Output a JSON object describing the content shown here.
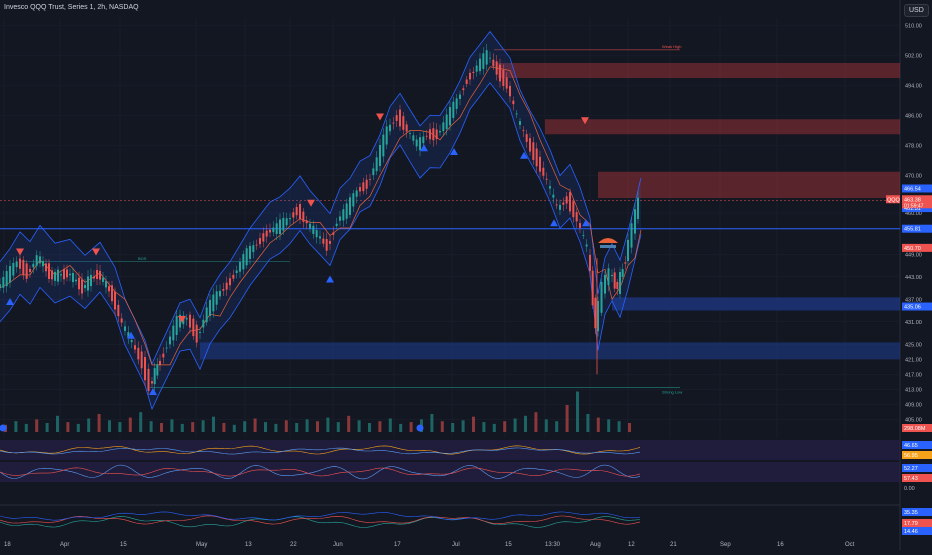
{
  "header": {
    "title": "Invesco QQQ Trust, Series 1, 2h, NASDAQ",
    "currency": "USD"
  },
  "colors": {
    "background": "#131722",
    "up": "#26a69a",
    "down": "#ef5350",
    "band": "#2962ff",
    "price_line": "#2962ff",
    "zone_red": "#b2363a",
    "zone_blue": "#1e3a8a",
    "ema": "#e8623a"
  },
  "chart_data": {
    "type": "candlestick",
    "title": "Invesco QQQ Trust, Series 1, 2h, NASDAQ",
    "currency": "USD",
    "ylim": [
      400,
      512
    ],
    "price_ticks": [
      "510.00",
      "502.00",
      "494.00",
      "486.00",
      "478.00",
      "470.00",
      "460.00",
      "449.00",
      "443.00",
      "437.00",
      "431.00",
      "425.00",
      "421.00",
      "417.00",
      "413.00",
      "409.00",
      "405.00"
    ],
    "time_ticks": [
      "18",
      "Apr",
      "15",
      "May",
      "13",
      "22",
      "Jun",
      "17",
      "Jul",
      "15",
      "13:30",
      "Aug",
      "12",
      "21",
      "Sep",
      "16",
      "Oct"
    ],
    "price_series": [
      {
        "x": 0,
        "y": 440
      },
      {
        "x": 10,
        "y": 443
      },
      {
        "x": 20,
        "y": 447
      },
      {
        "x": 30,
        "y": 444
      },
      {
        "x": 40,
        "y": 448
      },
      {
        "x": 55,
        "y": 443
      },
      {
        "x": 70,
        "y": 444
      },
      {
        "x": 85,
        "y": 440
      },
      {
        "x": 100,
        "y": 444
      },
      {
        "x": 115,
        "y": 438
      },
      {
        "x": 125,
        "y": 430
      },
      {
        "x": 135,
        "y": 425
      },
      {
        "x": 145,
        "y": 420
      },
      {
        "x": 152,
        "y": 414
      },
      {
        "x": 160,
        "y": 419
      },
      {
        "x": 170,
        "y": 425
      },
      {
        "x": 180,
        "y": 431
      },
      {
        "x": 190,
        "y": 432
      },
      {
        "x": 200,
        "y": 427
      },
      {
        "x": 210,
        "y": 434
      },
      {
        "x": 220,
        "y": 438
      },
      {
        "x": 230,
        "y": 441
      },
      {
        "x": 240,
        "y": 445
      },
      {
        "x": 250,
        "y": 449
      },
      {
        "x": 260,
        "y": 452
      },
      {
        "x": 270,
        "y": 455
      },
      {
        "x": 280,
        "y": 456
      },
      {
        "x": 290,
        "y": 458
      },
      {
        "x": 300,
        "y": 461
      },
      {
        "x": 310,
        "y": 457
      },
      {
        "x": 320,
        "y": 454
      },
      {
        "x": 330,
        "y": 451
      },
      {
        "x": 340,
        "y": 458
      },
      {
        "x": 350,
        "y": 461
      },
      {
        "x": 360,
        "y": 466
      },
      {
        "x": 370,
        "y": 468
      },
      {
        "x": 380,
        "y": 474
      },
      {
        "x": 390,
        "y": 482
      },
      {
        "x": 400,
        "y": 486
      },
      {
        "x": 410,
        "y": 482
      },
      {
        "x": 420,
        "y": 478
      },
      {
        "x": 430,
        "y": 481
      },
      {
        "x": 440,
        "y": 481
      },
      {
        "x": 450,
        "y": 485
      },
      {
        "x": 460,
        "y": 490
      },
      {
        "x": 470,
        "y": 496
      },
      {
        "x": 480,
        "y": 499
      },
      {
        "x": 490,
        "y": 502
      },
      {
        "x": 500,
        "y": 498
      },
      {
        "x": 510,
        "y": 494
      },
      {
        "x": 520,
        "y": 485
      },
      {
        "x": 530,
        "y": 479
      },
      {
        "x": 540,
        "y": 474
      },
      {
        "x": 550,
        "y": 468
      },
      {
        "x": 560,
        "y": 461
      },
      {
        "x": 570,
        "y": 464
      },
      {
        "x": 580,
        "y": 458
      },
      {
        "x": 590,
        "y": 450
      },
      {
        "x": 598,
        "y": 430
      },
      {
        "x": 605,
        "y": 440
      },
      {
        "x": 612,
        "y": 444
      },
      {
        "x": 620,
        "y": 440
      },
      {
        "x": 628,
        "y": 448
      },
      {
        "x": 635,
        "y": 456
      },
      {
        "x": 641,
        "y": 463
      }
    ],
    "volume": [
      8,
      12,
      9,
      14,
      10,
      18,
      11,
      9,
      15,
      20,
      13,
      11,
      16,
      22,
      12,
      10,
      14,
      9,
      11,
      13,
      17,
      10,
      8,
      12,
      15,
      11,
      9,
      13,
      10,
      14,
      12,
      16,
      11,
      18,
      13,
      10,
      12,
      15,
      9,
      11,
      14,
      20,
      12,
      10,
      13,
      17,
      11,
      9,
      12,
      15,
      18,
      22,
      14,
      12,
      30,
      45,
      20,
      16,
      14,
      12,
      10
    ],
    "labels": {
      "current": "QQQ",
      "price_label": "463.38",
      "countdown": "01:59:47",
      "upper": "466.54",
      "mid": "461.31",
      "level": "455.81",
      "red_tag": "450.70",
      "blue_tag": "435.06",
      "volume_tag": "298.08M",
      "osc1_a": "46.65",
      "osc1_b": "56.95",
      "osc2_a": "52.27",
      "osc2_b": "57.43",
      "osc2_zero": "0.00",
      "osc3_a": "35.35",
      "osc3_b": "17.79",
      "osc3_c": "14.46",
      "week_high": "Weak High",
      "strong_low": "Strong Low",
      "bos": "BOS"
    }
  }
}
